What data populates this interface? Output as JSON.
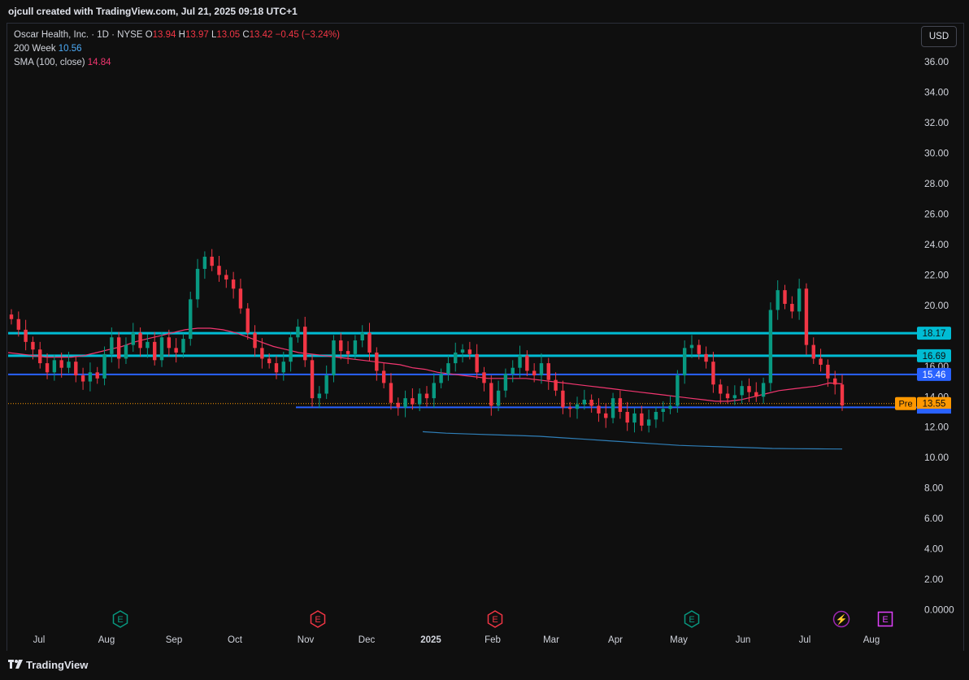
{
  "header": {
    "credit": "ojcull created with TradingView.com, Jul 21, 2025 09:18 UTC+1"
  },
  "legend": {
    "symbol": "Oscar Health, Inc. · 1D · NYSE",
    "o_label": "O",
    "o_value": "13.94",
    "h_label": "H",
    "h_value": "13.97",
    "l_label": "L",
    "l_value": "13.05",
    "c_label": "C",
    "c_value": "13.42",
    "change": "−0.45 (−3.24%)",
    "ma200_label": "200 Week",
    "ma200_value": "10.56",
    "sma_label": "SMA (100, close)",
    "sma_value": "14.84"
  },
  "currency": "USD",
  "footer": {
    "brand": "TradingView"
  },
  "colors": {
    "up": "#089981",
    "down": "#f23645",
    "sma": "#f23670",
    "ma200": "#2f7fb8",
    "cyan_line": "#00bcd4",
    "blue_line": "#2962ff",
    "pre": "#ff9800"
  },
  "chart_data": {
    "type": "candlestick",
    "y_axis": {
      "ticks": [
        "36.00",
        "34.00",
        "32.00",
        "30.00",
        "28.00",
        "26.00",
        "24.00",
        "22.00",
        "20.00",
        "18.00",
        "16.00",
        "14.00",
        "12.00",
        "10.00",
        "8.00",
        "6.00",
        "4.00",
        "2.00",
        "0.0000"
      ],
      "range": [
        0,
        36
      ]
    },
    "x_axis": {
      "ticks": [
        "Jul",
        "Aug",
        "Sep",
        "Oct",
        "Nov",
        "Dec",
        "2025",
        "Feb",
        "Mar",
        "Apr",
        "May",
        "Jun",
        "Jul",
        "Aug"
      ]
    },
    "horizontal_levels": [
      {
        "value": 18.17,
        "label": "18.17",
        "color": "#00bcd4"
      },
      {
        "value": 16.69,
        "label": "16.69",
        "color": "#00bcd4"
      },
      {
        "value": 15.46,
        "label": "15.46",
        "color": "#2962ff"
      },
      {
        "value": 13.3,
        "label": "",
        "color": "#2962ff"
      }
    ],
    "premarket": {
      "label": "Pre",
      "value": "13.55"
    },
    "events": [
      {
        "type": "earnings",
        "label": "E",
        "color": "#089981",
        "month": "Aug"
      },
      {
        "type": "earnings",
        "label": "E",
        "color": "#f23645",
        "month": "Nov"
      },
      {
        "type": "earnings",
        "label": "E",
        "color": "#f23645",
        "month": "Feb"
      },
      {
        "type": "earnings",
        "label": "E",
        "color": "#089981",
        "month": "May"
      },
      {
        "type": "dividend-bolt",
        "label": "⚡",
        "color": "#9c27b0",
        "month": "Jul"
      },
      {
        "type": "earnings",
        "label": "E",
        "color": "#e040fb",
        "month": "Aug"
      }
    ],
    "series": [
      {
        "name": "OSCR",
        "style": "candles",
        "closes": [
          19.1,
          18.4,
          17.6,
          17.1,
          16.2,
          15.6,
          16.4,
          15.9,
          16.3,
          15.4,
          15.0,
          15.6,
          15.2,
          16.8,
          17.9,
          16.5,
          17.4,
          18.2,
          17.2,
          17.6,
          16.4,
          17.9,
          17.2,
          16.9,
          17.8,
          20.4,
          22.4,
          23.2,
          22.6,
          22.0,
          21.7,
          21.1,
          19.8,
          18.2,
          17.2,
          16.5,
          16.2,
          15.6,
          16.3,
          17.9,
          18.6,
          16.4,
          13.9,
          14.2,
          15.4,
          17.7,
          17.0,
          16.8,
          17.7,
          18.2,
          16.9,
          15.7,
          14.9,
          13.6,
          13.3,
          13.9,
          13.5,
          14.2,
          13.9,
          14.9,
          15.5,
          16.2,
          16.9,
          17.1,
          16.8,
          15.6,
          14.9,
          13.4,
          14.4,
          15.5,
          15.9,
          16.7,
          15.7,
          15.4,
          16.2,
          15.1,
          14.4,
          13.3,
          13.2,
          13.5,
          13.8,
          13.4,
          12.9,
          12.6,
          13.9,
          13.0,
          12.3,
          12.9,
          12.1,
          12.5,
          13.0,
          13.2,
          13.4,
          15.4,
          17.2,
          17.4,
          16.8,
          16.3,
          14.8,
          14.2,
          13.9,
          14.1,
          14.7,
          14.3,
          14.0,
          14.9,
          19.7,
          21.0,
          20.1,
          19.6,
          21.1,
          17.4,
          16.5,
          16.1,
          15.2,
          14.8,
          13.42
        ]
      },
      {
        "name": "SMA (100, close)",
        "style": "line",
        "values": [
          16.9,
          16.8,
          16.7,
          16.6,
          16.6,
          16.6,
          16.7,
          16.9,
          17.1,
          17.3,
          17.6,
          17.8,
          18.0,
          18.2,
          18.4,
          18.5,
          18.5,
          18.4,
          18.2,
          17.9,
          17.6,
          17.3,
          17.1,
          16.9,
          16.8,
          16.7,
          16.6,
          16.5,
          16.4,
          16.3,
          16.2,
          16.1,
          15.9,
          15.8,
          15.6,
          15.5,
          15.4,
          15.3,
          15.2,
          15.2,
          15.2,
          15.2,
          15.1,
          15.0,
          14.9,
          14.8,
          14.7,
          14.6,
          14.5,
          14.4,
          14.3,
          14.2,
          14.1,
          14.0,
          13.9,
          13.8,
          13.7,
          13.7,
          13.8,
          14.0,
          14.2,
          14.4,
          14.5,
          14.6,
          14.7,
          14.9,
          14.84
        ]
      },
      {
        "name": "200 Week",
        "style": "line",
        "values": [
          11.7,
          11.6,
          11.55,
          11.5,
          11.45,
          11.4,
          11.3,
          11.2,
          11.1,
          11.0,
          10.9,
          10.8,
          10.75,
          10.7,
          10.65,
          10.6,
          10.58,
          10.57,
          10.56
        ]
      }
    ]
  }
}
